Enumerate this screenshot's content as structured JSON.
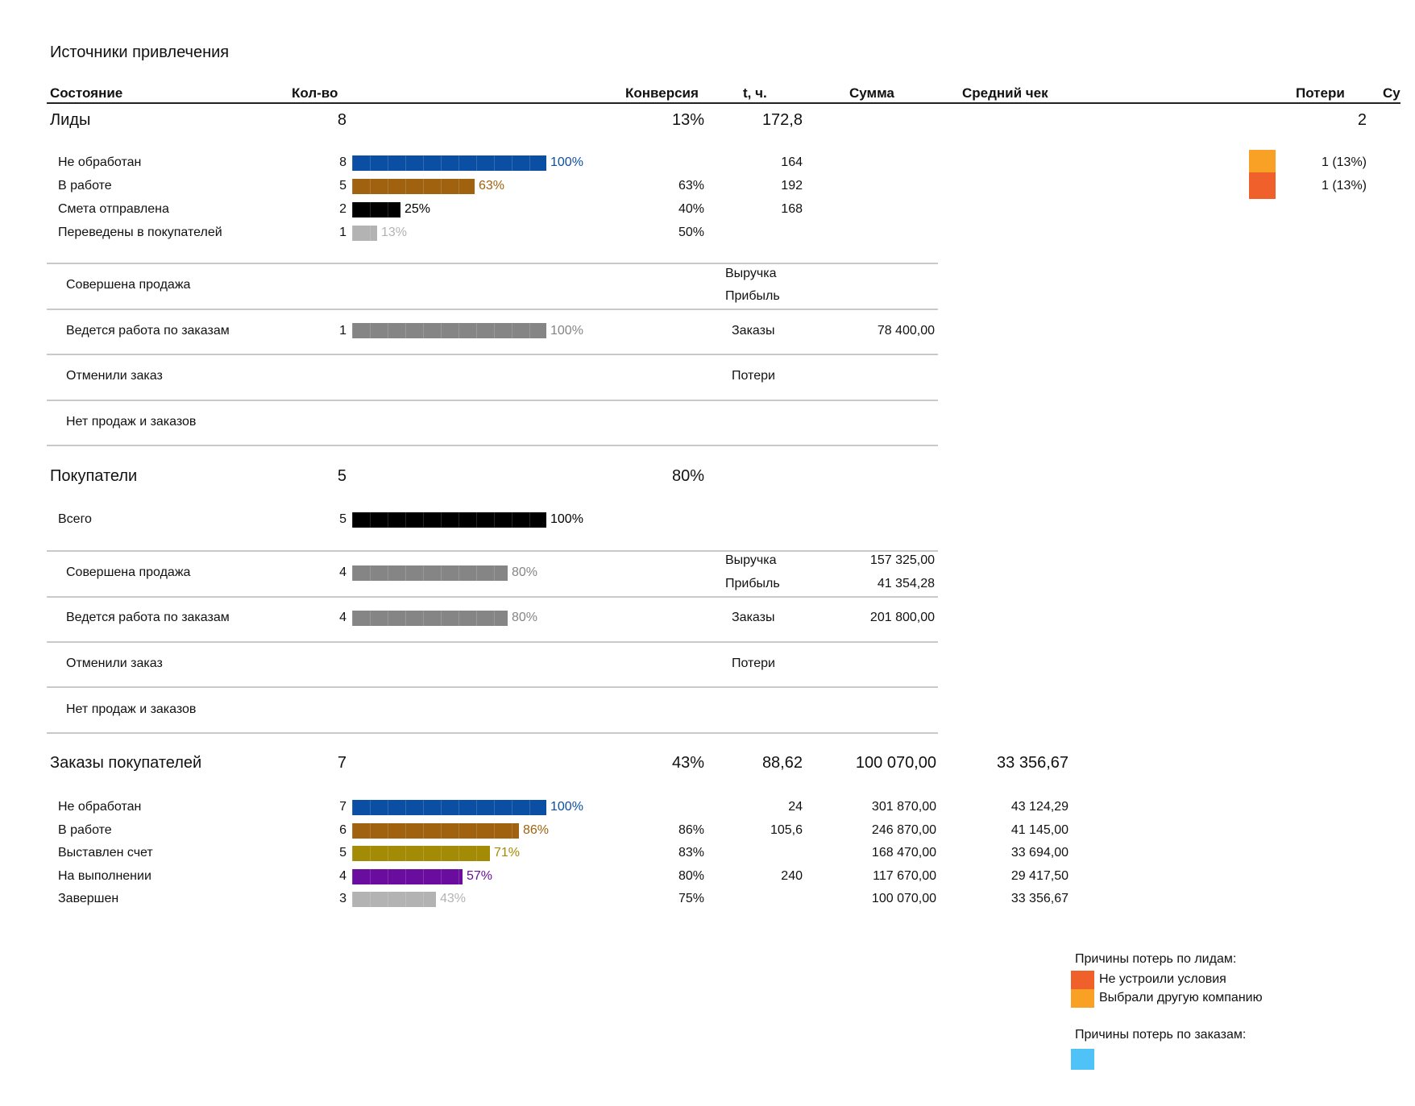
{
  "title": "Источники привлечения",
  "headers": {
    "state": "Состояние",
    "count": "Кол-во",
    "conversion": "Конверсия",
    "time": "t, ч.",
    "sum": "Сумма",
    "avg": "Средний чек",
    "losses": "Потери",
    "su": "Су"
  },
  "colors": {
    "blue": "#0a4fa3",
    "brown": "#a0620e",
    "black": "#000000",
    "lightgray": "#b3b3b3",
    "gray": "#858585",
    "olive": "#a38b05",
    "purple": "#6a0d9e",
    "orange": "#f9a125",
    "red_orange": "#f0602b",
    "sky": "#4fc3f7"
  },
  "leads": {
    "name": "Лиды",
    "count": "8",
    "conversion": "13%",
    "time": "172,8",
    "losses": "2",
    "rows": [
      {
        "label": "Не обработан",
        "count": "8",
        "pct": "100%",
        "fraction": 1.0,
        "color": "blue",
        "conv": "",
        "time": "164",
        "loss": "1 (13%)",
        "loss_color": "orange"
      },
      {
        "label": "В работе",
        "count": "5",
        "pct": "63%",
        "fraction": 0.63,
        "color": "brown",
        "conv": "63%",
        "time": "192",
        "loss": "1 (13%)",
        "loss_color": "red_orange"
      },
      {
        "label": "Смета отправлена",
        "count": "2",
        "pct": "25%",
        "fraction": 0.25,
        "color": "black",
        "conv": "40%",
        "time": "168",
        "loss": "",
        "loss_color": ""
      },
      {
        "label": "Переведены в покупателей",
        "count": "1",
        "pct": "13%",
        "fraction": 0.13,
        "color": "lightgray",
        "conv": "50%",
        "time": "",
        "loss": "",
        "loss_color": ""
      }
    ],
    "sale_label": "Совершена продажа",
    "revenue_label": "Выручка",
    "profit_label": "Прибыль",
    "orders_work_label": "Ведется работа по заказам",
    "orders_work_count": "1",
    "orders_work_pct": "100%",
    "orders_work_fraction": 1.0,
    "orders_label": "Заказы",
    "orders_sum": "78 400,00",
    "cancel_label": "Отменили заказ",
    "losses_label": "Потери",
    "none_label": "Нет продаж и заказов"
  },
  "buyers": {
    "name": "Покупатели",
    "count": "5",
    "conversion": "80%",
    "total_label": "Всего",
    "total_count": "5",
    "total_pct": "100%",
    "total_fraction": 1.0,
    "sale_label": "Совершена продажа",
    "sale_count": "4",
    "sale_pct": "80%",
    "sale_fraction": 0.8,
    "revenue_label": "Выручка",
    "revenue": "157 325,00",
    "profit_label": "Прибыль",
    "profit": "41 354,28",
    "orders_work_label": "Ведется работа по заказам",
    "orders_work_count": "4",
    "orders_work_pct": "80%",
    "orders_work_fraction": 0.8,
    "orders_label": "Заказы",
    "orders_sum": "201 800,00",
    "cancel_label": "Отменили заказ",
    "losses_label": "Потери",
    "none_label": "Нет продаж и заказов"
  },
  "orders": {
    "name": "Заказы покупателей",
    "count": "7",
    "conversion": "43%",
    "time": "88,62",
    "sum": "100 070,00",
    "avg": "33 356,67",
    "rows": [
      {
        "label": "Не обработан",
        "count": "7",
        "pct": "100%",
        "fraction": 1.0,
        "color": "blue",
        "conv": "",
        "time": "24",
        "sum": "301 870,00",
        "avg": "43 124,29"
      },
      {
        "label": "В работе",
        "count": "6",
        "pct": "86%",
        "fraction": 0.86,
        "color": "brown",
        "conv": "86%",
        "time": "105,6",
        "sum": "246 870,00",
        "avg": "41 145,00"
      },
      {
        "label": "Выставлен счет",
        "count": "5",
        "pct": "71%",
        "fraction": 0.71,
        "color": "olive",
        "conv": "83%",
        "time": "",
        "sum": "168 470,00",
        "avg": "33 694,00"
      },
      {
        "label": "На выполнении",
        "count": "4",
        "pct": "57%",
        "fraction": 0.57,
        "color": "purple",
        "conv": "80%",
        "time": "240",
        "sum": "117 670,00",
        "avg": "29 417,50"
      },
      {
        "label": "Завершен",
        "count": "3",
        "pct": "43%",
        "fraction": 0.43,
        "color": "lightgray",
        "conv": "75%",
        "time": "",
        "sum": "100 070,00",
        "avg": "33 356,67"
      }
    ]
  },
  "legend": {
    "lead_title": "Причины потерь по лидам:",
    "lead_items": [
      {
        "label": "Не устроили условия",
        "color": "red_orange"
      },
      {
        "label": "Выбрали другую компанию",
        "color": "orange"
      }
    ],
    "order_title": "Причины потерь по заказам:",
    "order_items": [
      {
        "label": "",
        "color": "sky"
      }
    ]
  }
}
